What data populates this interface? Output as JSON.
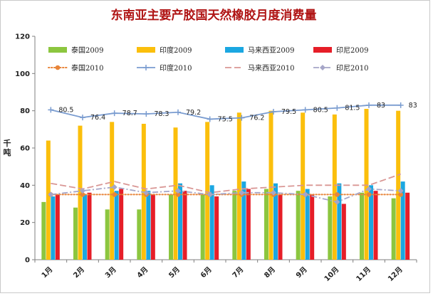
{
  "chart_data": {
    "type": "bar",
    "title": "东南亚主要产胶国天然橡胶月度消费量",
    "ylabel": "千吨",
    "ylim": [
      0,
      120
    ],
    "yticks": [
      0,
      20,
      40,
      60,
      80,
      100,
      120
    ],
    "grid": false,
    "legend": "top",
    "categories": [
      "1月",
      "2月",
      "3月",
      "4月",
      "5月",
      "6月",
      "7月",
      "8月",
      "9月",
      "10月",
      "11月",
      "12月"
    ],
    "bar_series": [
      {
        "name": "泰国2009",
        "color": "#8cc63f",
        "values": [
          31,
          28,
          27,
          27,
          35,
          35,
          37,
          38,
          37,
          34,
          36,
          33
        ]
      },
      {
        "name": "印度2009",
        "color": "#fbbf0c",
        "values": [
          64,
          72,
          74,
          73,
          71,
          74,
          79,
          80,
          79,
          78,
          81,
          80
        ]
      },
      {
        "name": "马来西亚2009",
        "color": "#1ba7e1",
        "values": [
          34,
          35,
          37,
          37,
          41,
          40,
          42,
          41,
          38,
          41,
          40,
          42
        ]
      },
      {
        "name": "印尼2009",
        "color": "#e61e28",
        "values": [
          35,
          36,
          38,
          35,
          37,
          34,
          38,
          35,
          35,
          30,
          37,
          36
        ]
      }
    ],
    "line_series": [
      {
        "name": "泰国2010",
        "color": "#e8853a",
        "style": "dotted",
        "marker": "circle",
        "values": [
          35,
          35,
          35,
          35,
          35,
          35,
          35,
          35,
          35,
          35,
          35,
          35
        ]
      },
      {
        "name": "印度2010",
        "color": "#7a9cd0",
        "style": "solid",
        "marker": "plus",
        "values": [
          80.5,
          76.4,
          78.7,
          78.3,
          79.2,
          75.5,
          76.2,
          79.5,
          80.5,
          81.5,
          83,
          83
        ],
        "labels": [
          "80.5",
          "76.4",
          "78.7",
          "78.3",
          "79.2",
          "75.5",
          "76.2",
          "79.5",
          "80.5",
          "81.5",
          "83",
          "83"
        ]
      },
      {
        "name": "马来西亚2010",
        "color": "#d99694",
        "style": "dashed",
        "marker": "none",
        "values": [
          41,
          38,
          42,
          38,
          40,
          36,
          38,
          39,
          40,
          40,
          40,
          46
        ]
      },
      {
        "name": "印尼2010",
        "color": "#a6a6c8",
        "style": "dashdot",
        "marker": "diamond",
        "values": [
          35,
          37,
          39,
          36,
          37,
          35,
          36,
          36,
          35,
          31,
          38,
          37
        ]
      }
    ]
  }
}
